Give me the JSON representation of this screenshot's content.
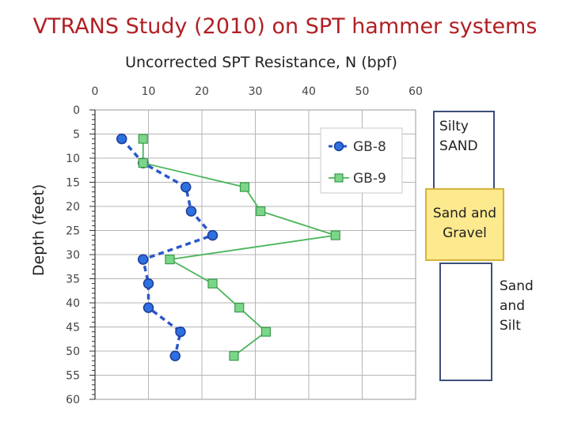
{
  "slide_title": "VTRANS Study (2010) on SPT hammer systems",
  "chart_data": {
    "type": "line",
    "title": "Uncorrected SPT Resistance, N (bpf)",
    "xlabel": "Uncorrected SPT Resistance, N (bpf)",
    "ylabel": "Depth (feet)",
    "xlim": [
      0,
      60
    ],
    "ylim": [
      0,
      60
    ],
    "y_inverted": true,
    "x_ticks": [
      "0",
      "10",
      "20",
      "30",
      "40",
      "50",
      "60"
    ],
    "y_ticks": [
      "0",
      "5",
      "10",
      "15",
      "20",
      "25",
      "30",
      "35",
      "40",
      "45",
      "50",
      "55",
      "60"
    ],
    "grid": true,
    "legend_position": "top-right",
    "series": [
      {
        "name": "GB-8",
        "color": "#2b57c9",
        "line_style": "dashed",
        "marker": "circle",
        "points": [
          [
            5,
            6
          ],
          [
            9,
            11
          ],
          [
            17,
            16
          ],
          [
            18,
            21
          ],
          [
            22,
            26
          ],
          [
            9,
            31
          ],
          [
            10,
            36
          ],
          [
            10,
            41
          ],
          [
            16,
            46
          ],
          [
            15,
            51
          ]
        ]
      },
      {
        "name": "GB-9",
        "color": "#4ab55a",
        "line_style": "solid",
        "marker": "square",
        "points": [
          [
            9,
            6
          ],
          [
            9,
            11
          ],
          [
            28,
            16
          ],
          [
            31,
            21
          ],
          [
            45,
            26
          ],
          [
            14,
            31
          ],
          [
            22,
            36
          ],
          [
            27,
            41
          ],
          [
            32,
            46
          ],
          [
            26,
            51
          ]
        ]
      }
    ]
  },
  "strata": {
    "silty_sand": "Silty SAND",
    "sand_gravel": "Sand and Gravel",
    "sand_silt": "Sand and Silt"
  }
}
